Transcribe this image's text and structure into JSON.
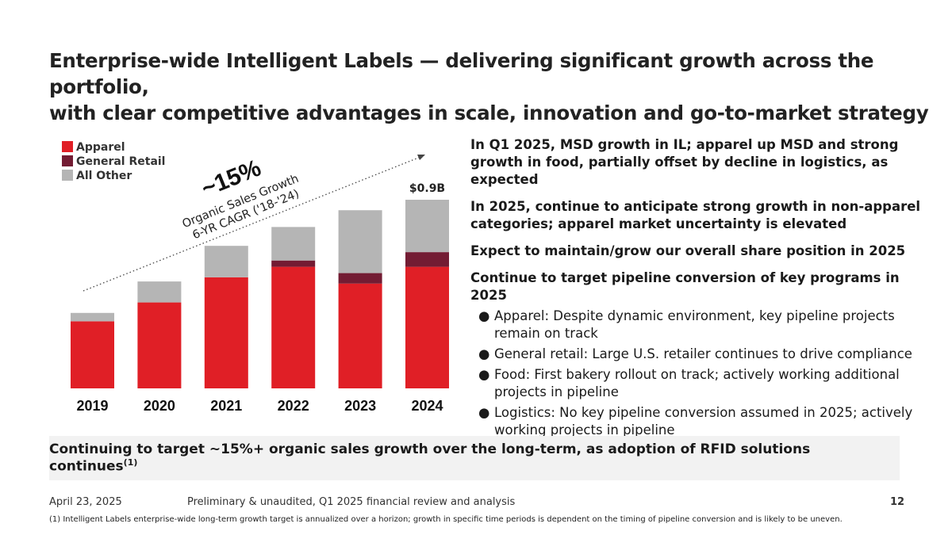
{
  "title_lines": [
    "Enterprise-wide Intelligent Labels — delivering significant growth across the portfolio,",
    "with clear competitive advantages in scale, innovation and go-to-market strategy"
  ],
  "chart_data": {
    "type": "bar",
    "stacked": true,
    "categories": [
      "2019",
      "2020",
      "2021",
      "2022",
      "2023",
      "2024"
    ],
    "series": [
      {
        "name": "Apparel",
        "color": "#e01f26",
        "values": [
          0.32,
          0.41,
          0.53,
          0.58,
          0.5,
          0.58
        ]
      },
      {
        "name": "General Retail",
        "color": "#731c33",
        "values": [
          0,
          0,
          0,
          0.03,
          0.05,
          0.07
        ]
      },
      {
        "name": "All Other",
        "color": "#b5b5b5",
        "values": [
          0.04,
          0.1,
          0.15,
          0.16,
          0.3,
          0.25
        ]
      }
    ],
    "unit": "$B",
    "ylim": [
      0,
      0.9
    ],
    "data_labels": {
      "2024": "$0.9B"
    },
    "annotation": {
      "big": "~15%",
      "line1": "Organic Sales Growth",
      "line2": "6-YR CAGR ('18-'24)"
    },
    "legend_placement": "top-left",
    "grid": false
  },
  "right": {
    "h1": "In Q1 2025, MSD growth in IL; apparel up MSD and strong growth in food, partially offset by decline in logistics, as expected",
    "h2": "In 2025, continue to anticipate strong growth in non-apparel categories; apparel market uncertainty is elevated",
    "h3": "Expect to maintain/grow our overall share position in 2025",
    "h4": "Continue to target pipeline conversion of key programs in 2025",
    "bullet": "●",
    "bullets": [
      "Apparel: Despite dynamic environment, key pipeline projects remain on track",
      "General retail: Large U.S. retailer continues to drive compliance",
      "Food: First bakery rollout on track; actively working additional projects in pipeline",
      "Logistics: No key pipeline conversion assumed in 2025; actively working projects in pipeline"
    ]
  },
  "banner": {
    "text": "Continuing to target ~15%+ organic sales growth over the long-term, as adoption of RFID solutions continues",
    "sup": "(1)"
  },
  "footer": {
    "date": "April 23, 2025",
    "center": "Preliminary & unaudited, Q1 2025 financial review and analysis",
    "page": "12",
    "note": "(1) Intelligent Labels enterprise-wide long-term growth target is annualized over a horizon; growth in specific time periods is dependent on the timing of pipeline conversion and is likely to be uneven."
  }
}
